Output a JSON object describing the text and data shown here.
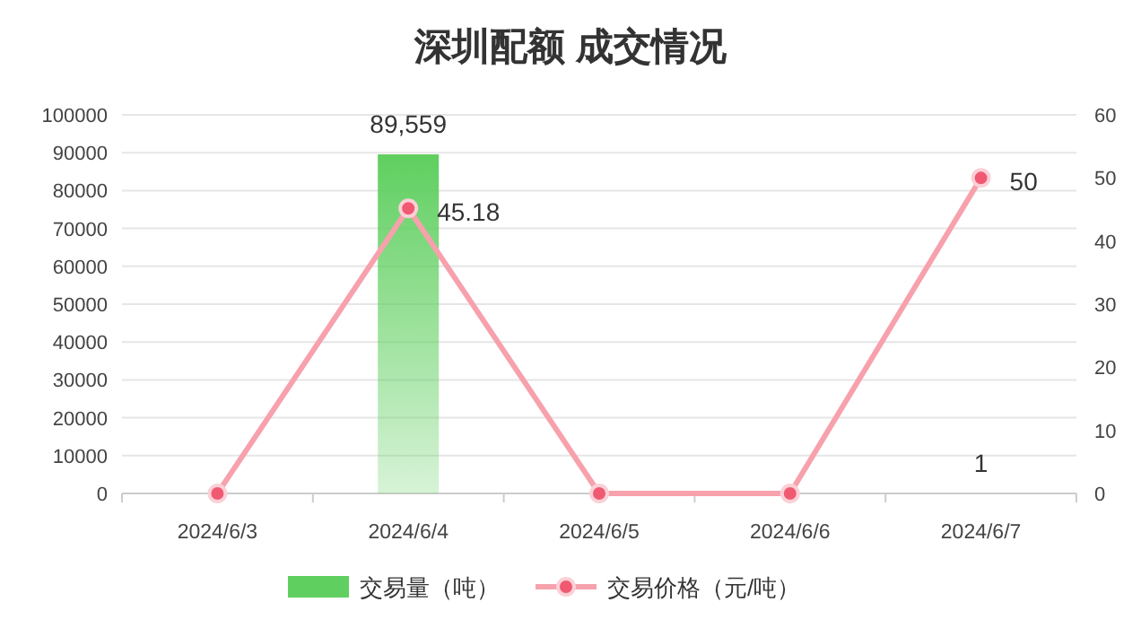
{
  "chart_data": {
    "type": "bar",
    "title": "深圳配额 成交情况",
    "categories": [
      "2024/6/3",
      "2024/6/4",
      "2024/6/5",
      "2024/6/6",
      "2024/6/7"
    ],
    "series": [
      {
        "name": "交易量（吨）",
        "color": "#5fcf5f",
        "values": [
          0,
          89559,
          0,
          0,
          1
        ],
        "value_labels": [
          null,
          "89,559",
          null,
          null,
          "1"
        ]
      },
      {
        "name": "交易价格（元/吨）",
        "type": "line",
        "axis": "y2",
        "color": "#f7a1ad",
        "marker": "circle",
        "values": [
          0,
          45.18,
          0,
          0,
          50
        ],
        "value_labels": [
          null,
          "45.18",
          null,
          null,
          "50"
        ]
      }
    ],
    "ylim": [
      0,
      100000
    ],
    "yticks": [
      0,
      10000,
      20000,
      30000,
      40000,
      50000,
      60000,
      70000,
      80000,
      90000,
      100000
    ],
    "y2lim": [
      0,
      60
    ],
    "y2ticks": [
      0,
      10,
      20,
      30,
      40,
      50,
      60
    ],
    "grid": "y",
    "legend": "bottom"
  }
}
